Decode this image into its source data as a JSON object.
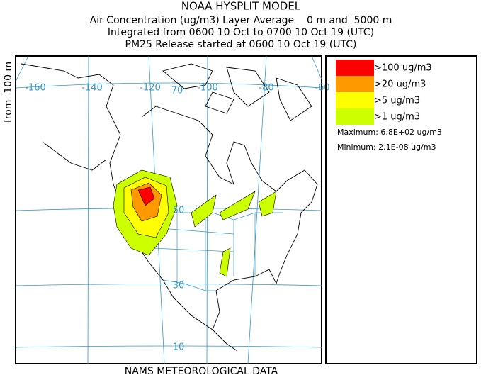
{
  "header": {
    "title": "NOAA HYSPLIT MODEL",
    "lines": [
      "Air Concentration (ug/m3) Layer Average    0 m and  5000 m",
      "Integrated from 0600 10 Oct to 0700 10 Oct 19 (UTC)",
      "PM25 Release started at 0600 10 Oct 19 (UTC)"
    ]
  },
  "side_label": "from  100 m",
  "map": {
    "longitude_labels": [
      "-160",
      "-140",
      "-120",
      "-100",
      "-80",
      "-60"
    ],
    "latitude_labels": [
      "70",
      "50",
      "30",
      "10"
    ]
  },
  "legend": {
    "entries": [
      {
        "label": ">100 ug/m3",
        "color": "#ff0000"
      },
      {
        "label": ">20 ug/m3",
        "color": "#ff9900"
      },
      {
        "label": ">5 ug/m3",
        "color": "#ffff00"
      },
      {
        "label": ">1 ug/m3",
        "color": "#ccff00"
      }
    ],
    "maximum": "Maximum: 6.8E+02 ug/m3",
    "minimum": "Minimum: 2.1E-08 ug/m3"
  },
  "footer": "NAMS METEOROLOGICAL DATA"
}
